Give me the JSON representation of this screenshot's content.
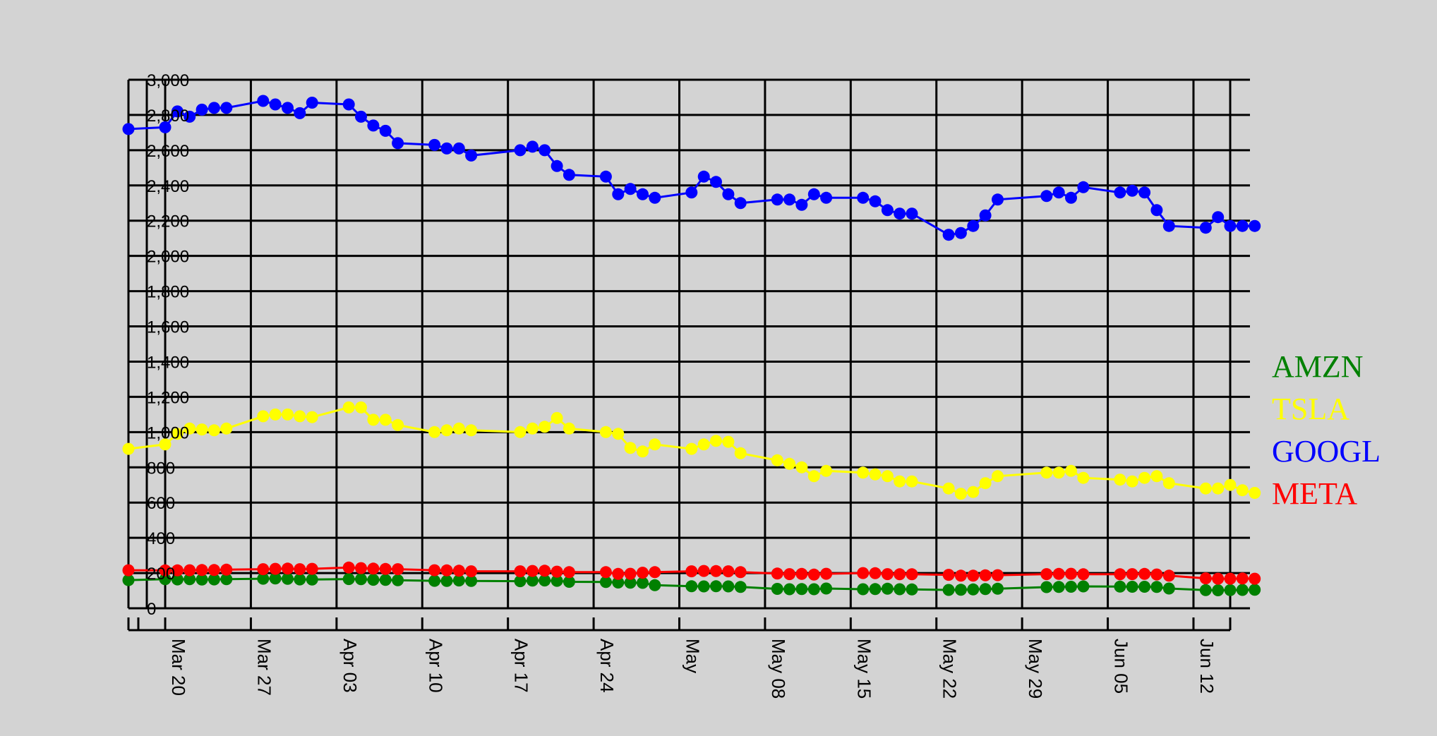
{
  "chart_data": {
    "type": "line",
    "title": "",
    "xlabel": "",
    "ylabel": "",
    "ylim": [
      0,
      3000
    ],
    "yticks": [
      0,
      200,
      400,
      600,
      800,
      1000,
      1200,
      1400,
      1600,
      1800,
      2000,
      2200,
      2400,
      2600,
      2800,
      3000
    ],
    "ytick_labels": [
      "0",
      "200",
      "400",
      "600",
      "800",
      "1,000",
      "1,200",
      "1,400",
      "1,600",
      "1,800",
      "2,000",
      "2,200",
      "2,400",
      "2,600",
      "2,800",
      "3,000"
    ],
    "x_axis": "date",
    "xlim": [
      "2022-03-17",
      "2022-06-15"
    ],
    "xticks": [
      "2022-03-20",
      "2022-03-27",
      "2022-04-03",
      "2022-04-10",
      "2022-04-17",
      "2022-04-24",
      "2022-05-01",
      "2022-05-08",
      "2022-05-15",
      "2022-05-22",
      "2022-05-29",
      "2022-06-05",
      "2022-06-12"
    ],
    "xtick_labels": [
      "Mar 20",
      "Mar 27",
      "Apr 03",
      "Apr 10",
      "Apr 17",
      "Apr 24",
      "May",
      "May 08",
      "May 15",
      "May 22",
      "May 29",
      "Jun 05",
      "Jun 12"
    ],
    "grid": true,
    "legend_position": "right",
    "x": [
      "2022-03-17",
      "2022-03-20",
      "2022-03-21",
      "2022-03-22",
      "2022-03-23",
      "2022-03-24",
      "2022-03-25",
      "2022-03-28",
      "2022-03-29",
      "2022-03-30",
      "2022-03-31",
      "2022-04-01",
      "2022-04-04",
      "2022-04-05",
      "2022-04-06",
      "2022-04-07",
      "2022-04-08",
      "2022-04-11",
      "2022-04-12",
      "2022-04-13",
      "2022-04-14",
      "2022-04-18",
      "2022-04-19",
      "2022-04-20",
      "2022-04-21",
      "2022-04-22",
      "2022-04-25",
      "2022-04-26",
      "2022-04-27",
      "2022-04-28",
      "2022-04-29",
      "2022-05-02",
      "2022-05-03",
      "2022-05-04",
      "2022-05-05",
      "2022-05-06",
      "2022-05-09",
      "2022-05-10",
      "2022-05-11",
      "2022-05-12",
      "2022-05-13",
      "2022-05-16",
      "2022-05-17",
      "2022-05-18",
      "2022-05-19",
      "2022-05-20",
      "2022-05-23",
      "2022-05-24",
      "2022-05-25",
      "2022-05-26",
      "2022-05-27",
      "2022-05-31",
      "2022-06-01",
      "2022-06-02",
      "2022-06-03",
      "2022-06-06",
      "2022-06-07",
      "2022-06-08",
      "2022-06-09",
      "2022-06-10",
      "2022-06-13",
      "2022-06-14",
      "2022-06-15",
      "2022-06-16",
      "2022-06-17"
    ],
    "series": [
      {
        "name": "AMZN",
        "color": "#008000",
        "values": [
          160,
          165,
          164,
          165,
          163,
          164,
          165,
          168,
          169,
          167,
          164,
          163,
          166,
          165,
          162,
          161,
          159,
          156,
          155,
          158,
          155,
          154,
          157,
          158,
          156,
          150,
          149,
          146,
          145,
          144,
          131,
          125,
          124,
          125,
          124,
          121,
          110,
          108,
          109,
          108,
          112,
          108,
          109,
          111,
          108,
          107,
          104,
          105,
          107,
          109,
          111,
          120,
          121,
          122,
          124,
          123,
          122,
          122,
          121,
          112,
          103,
          102,
          103,
          104,
          105
        ]
      },
      {
        "name": "TSLA",
        "color": "#ffff00",
        "values": [
          905,
          930,
          990,
          1020,
          1015,
          1010,
          1020,
          1090,
          1100,
          1100,
          1090,
          1085,
          1140,
          1140,
          1070,
          1070,
          1040,
          1000,
          1010,
          1020,
          1010,
          1000,
          1020,
          1030,
          1080,
          1020,
          1000,
          990,
          910,
          890,
          930,
          905,
          930,
          950,
          945,
          880,
          840,
          820,
          800,
          750,
          780,
          770,
          760,
          750,
          720,
          720,
          680,
          650,
          660,
          710,
          750,
          770,
          770,
          780,
          740,
          730,
          720,
          740,
          750,
          710,
          680,
          680,
          700,
          670,
          655
        ]
      },
      {
        "name": "GOOGL",
        "color": "#0000ff",
        "values": [
          2720,
          2730,
          2820,
          2790,
          2830,
          2840,
          2840,
          2880,
          2860,
          2840,
          2810,
          2870,
          2860,
          2790,
          2740,
          2710,
          2640,
          2630,
          2610,
          2610,
          2570,
          2600,
          2620,
          2600,
          2510,
          2460,
          2450,
          2350,
          2380,
          2350,
          2330,
          2360,
          2450,
          2420,
          2350,
          2300,
          2320,
          2320,
          2290,
          2350,
          2330,
          2330,
          2310,
          2260,
          2240,
          2240,
          2120,
          2130,
          2170,
          2230,
          2320,
          2340,
          2360,
          2330,
          2390,
          2360,
          2370,
          2360,
          2260,
          2170,
          2160,
          2220,
          2170,
          2170,
          2170
        ]
      },
      {
        "name": "META",
        "color": "#ff0000",
        "values": [
          216,
          215,
          215,
          216,
          217,
          217,
          219,
          222,
          224,
          225,
          222,
          224,
          231,
          228,
          225,
          223,
          222,
          216,
          215,
          213,
          210,
          210,
          212,
          213,
          208,
          205,
          205,
          195,
          196,
          202,
          205,
          210,
          212,
          211,
          210,
          205,
          197,
          194,
          195,
          191,
          196,
          200,
          199,
          194,
          193,
          193,
          190,
          185,
          185,
          187,
          188,
          194,
          195,
          196,
          193,
          193,
          194,
          195,
          192,
          185,
          170,
          168,
          168,
          169,
          168
        ]
      }
    ]
  }
}
